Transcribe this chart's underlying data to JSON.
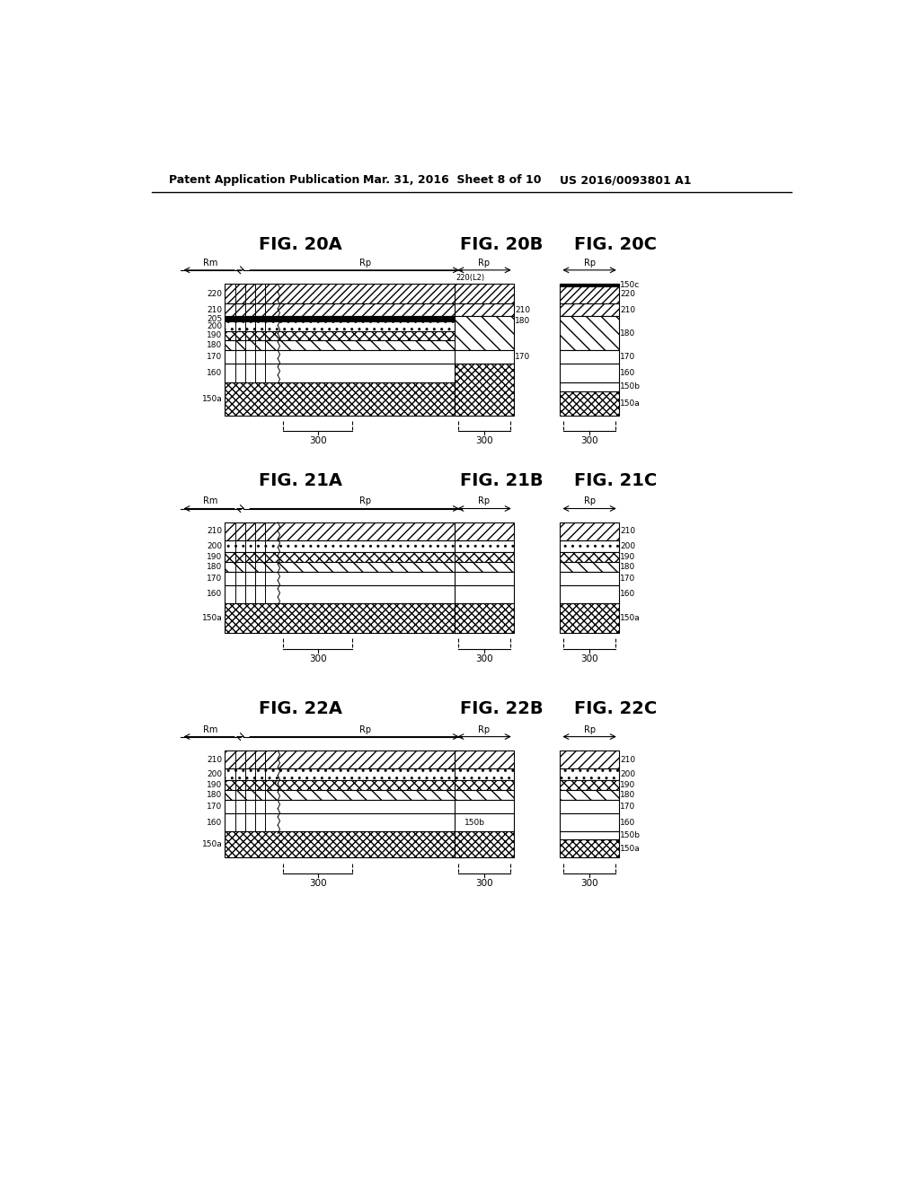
{
  "header_left": "Patent Application Publication",
  "header_mid": "Mar. 31, 2016  Sheet 8 of 10",
  "header_right": "US 2016/0093801 A1",
  "bg_color": "#ffffff"
}
